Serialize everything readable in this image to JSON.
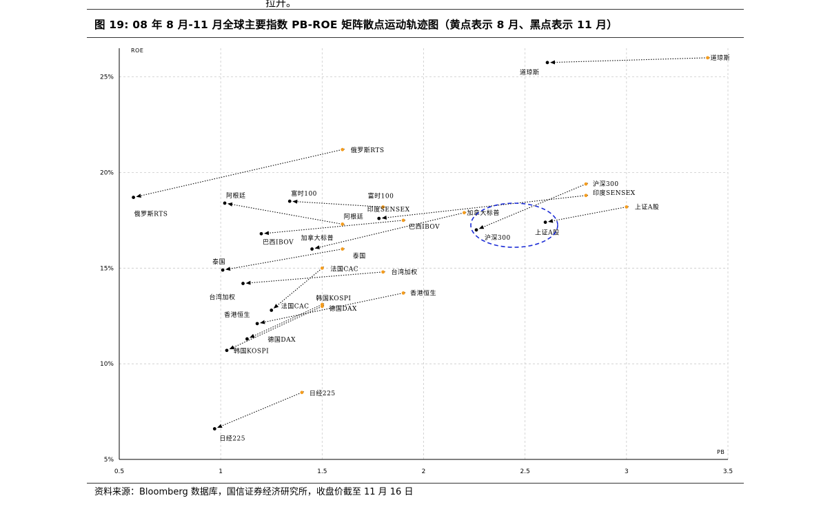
{
  "page": {
    "top_fragment": "拉升。",
    "figure_title": "图 19:  08 年 8 月-11 月全球主要指数 PB-ROE 矩阵散点运动轨迹图（黄点表示 8 月、黑点表示 11 月）",
    "source": "资料来源：Bloomberg 数据库，国信证券经济研究所，收盘价截至 11 月 16 日",
    "bottom_fragment": "· · · · · · ·"
  },
  "chart_data": {
    "type": "scatter",
    "title": "",
    "xlabel": "PB",
    "ylabel": "ROE",
    "xlim": [
      0.5,
      3.5
    ],
    "ylim": [
      5,
      26.5
    ],
    "xticks": [
      "0.5",
      "1",
      "1.5",
      "2",
      "2.5",
      "3",
      "3.5"
    ],
    "yticks": [
      "5%",
      "10%",
      "15%",
      "20%",
      "25%"
    ],
    "x_tick_values": [
      0.5,
      1,
      1.5,
      2,
      2.5,
      3,
      3.5
    ],
    "y_tick_values": [
      5,
      10,
      15,
      20,
      25
    ],
    "grid": true,
    "colors": {
      "aug": "#f39c1f",
      "nov": "#000000",
      "highlight": "#1a2bd6"
    },
    "highlight_note": "blue dashed ellipse around 沪深300 and 上证A股 November points",
    "series": [
      {
        "name": "道琼斯",
        "aug": [
          3.4,
          26.0
        ],
        "nov": [
          2.61,
          25.75
        ],
        "aug_label": "道琼斯",
        "nov_label": "道琼斯"
      },
      {
        "name": "俄罗斯RTS",
        "aug": [
          1.6,
          21.2
        ],
        "nov": [
          0.57,
          18.7
        ],
        "aug_label": "俄罗斯RTS",
        "nov_label": "俄罗斯RTS"
      },
      {
        "name": "阿根廷",
        "aug": [
          1.6,
          17.3
        ],
        "nov": [
          1.02,
          18.4
        ],
        "aug_label": "阿根廷",
        "nov_label": "阿根廷"
      },
      {
        "name": "富时100",
        "aug": [
          1.8,
          18.2
        ],
        "nov": [
          1.34,
          18.5
        ],
        "aug_label": "富时100",
        "nov_label": "富时100"
      },
      {
        "name": "印度SENSEX",
        "aug": [
          2.8,
          18.8
        ],
        "nov": [
          1.78,
          17.6
        ],
        "aug_label": "印度SENSEX",
        "nov_label": "印度SENSEX"
      },
      {
        "name": "巴西IBOV",
        "aug": [
          1.9,
          17.5
        ],
        "nov": [
          1.2,
          16.8
        ],
        "aug_label": "巴西IBOV",
        "nov_label": "巴西IBOV"
      },
      {
        "name": "加拿大标普",
        "aug": [
          2.2,
          17.9
        ],
        "nov": [
          1.45,
          16.0
        ],
        "aug_label": "加拿大标普",
        "nov_label": "加拿大标普"
      },
      {
        "name": "沪深300",
        "aug": [
          2.8,
          19.4
        ],
        "nov": [
          2.26,
          17.0
        ],
        "aug_label": "沪深300",
        "nov_label": "沪深300"
      },
      {
        "name": "上证A股",
        "aug": [
          3.0,
          18.2
        ],
        "nov": [
          2.6,
          17.4
        ],
        "aug_label": "上证A股",
        "nov_label": "上证A股"
      },
      {
        "name": "泰国",
        "aug": [
          1.6,
          16.0
        ],
        "nov": [
          1.01,
          14.9
        ],
        "aug_label": "泰国",
        "nov_label": "泰国"
      },
      {
        "name": "台湾加权",
        "aug": [
          1.8,
          14.8
        ],
        "nov": [
          1.11,
          14.2
        ],
        "aug_label": "台湾加权",
        "nov_label": "台湾加权"
      },
      {
        "name": "法国CAC",
        "aug": [
          1.5,
          15.0
        ],
        "nov": [
          1.25,
          12.8
        ],
        "aug_label": "法国CAC",
        "nov_label": "法国CAC"
      },
      {
        "name": "香港恒生",
        "aug": [
          1.9,
          13.7
        ],
        "nov": [
          1.18,
          12.1
        ],
        "aug_label": "香港恒生",
        "nov_label": "香港恒生"
      },
      {
        "name": "韩国KOSPI",
        "aug": [
          1.5,
          13.0
        ],
        "nov": [
          1.03,
          10.7
        ],
        "aug_label": "韩国KOSPI",
        "nov_label": "韩国KOSPI"
      },
      {
        "name": "德国DAX",
        "aug": [
          1.5,
          13.1
        ],
        "nov": [
          1.13,
          11.3
        ],
        "aug_label": "德国DAX",
        "nov_label": "德国DAX"
      },
      {
        "name": "日经225",
        "aug": [
          1.4,
          8.5
        ],
        "nov": [
          0.97,
          6.6
        ],
        "aug_label": "日经225",
        "nov_label": "日经225"
      }
    ]
  }
}
